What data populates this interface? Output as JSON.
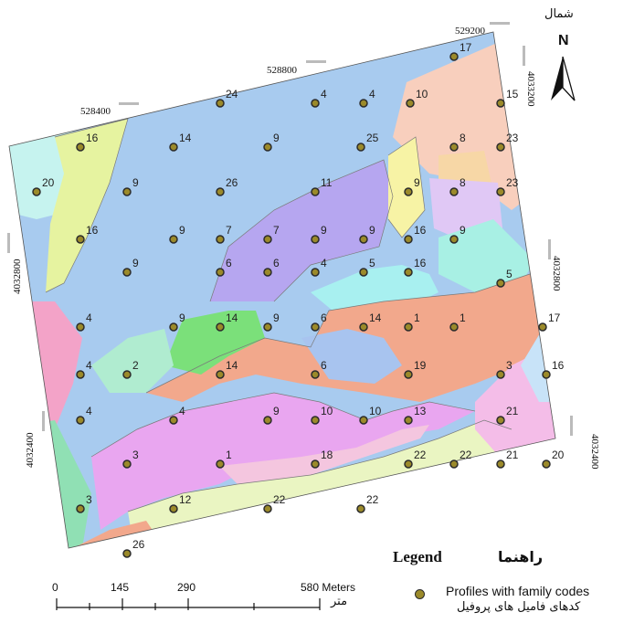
{
  "north": {
    "label_fa": "شمال",
    "letter": "N"
  },
  "legend": {
    "title": "Legend",
    "title_fa": "راهنما",
    "item": "Profiles with family codes",
    "item_fa": "کدهای فامیل های پروفیل"
  },
  "scalebar": {
    "ticks": [
      "0",
      "145",
      "290",
      "580 Meters"
    ],
    "unit_fa": "متر"
  },
  "coords": {
    "top": [
      "528400",
      "528800",
      "529200"
    ],
    "left": [
      "4032800",
      "4032400"
    ],
    "right": [
      "4033200",
      "4032800",
      "4032400"
    ]
  },
  "colors": {
    "profile_fill": "#9b8a2a",
    "profile_stroke": "#2b2b2b"
  },
  "profiles": [
    "17",
    "4",
    "4",
    "10",
    "15",
    "24",
    "14",
    "9",
    "25",
    "8",
    "23",
    "16",
    "20",
    "9",
    "26",
    "11",
    "9",
    "8",
    "23",
    "16",
    "9",
    "9",
    "7",
    "7",
    "9",
    "9",
    "16",
    "9",
    "6",
    "6",
    "4",
    "5",
    "16",
    "5",
    "4",
    "9",
    "14",
    "9",
    "6",
    "14",
    "1",
    "1",
    "17",
    "4",
    "2",
    "14",
    "6",
    "19",
    "3",
    "16",
    "4",
    "4",
    "9",
    "10",
    "10",
    "13",
    "21",
    "3",
    "1",
    "18",
    "22",
    "22",
    "21",
    "20",
    "3",
    "12",
    "22",
    "22",
    "26"
  ]
}
